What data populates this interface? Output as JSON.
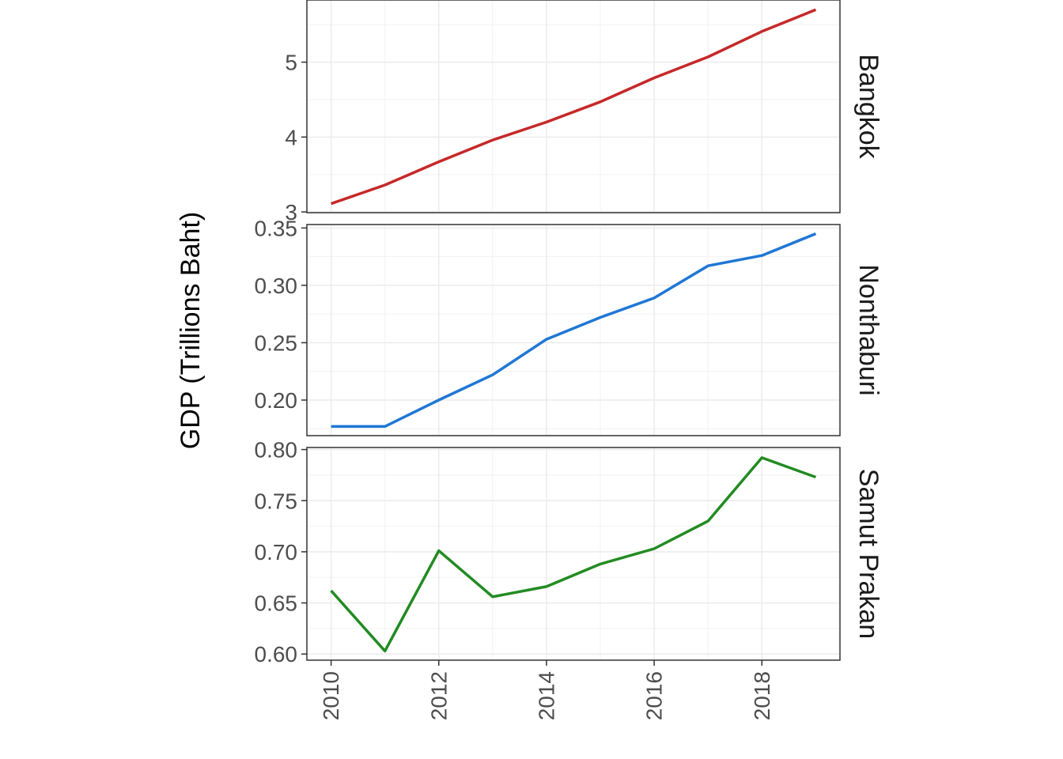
{
  "chart_data": {
    "type": "line",
    "facet_layout": "vertical, shared x axis",
    "grid": true,
    "xlabel": "",
    "ylabel": "GDP (Trillions Baht)",
    "x": [
      2010,
      2011,
      2012,
      2013,
      2014,
      2015,
      2016,
      2017,
      2018,
      2019
    ],
    "x_ticks": [
      "2010",
      "2012",
      "2014",
      "2016",
      "2018"
    ],
    "xlim": [
      2009.55,
      2019.45
    ],
    "panels": [
      {
        "name": "Bangkok",
        "color": "#c62828",
        "values": [
          3.11,
          3.36,
          3.67,
          3.96,
          4.2,
          4.47,
          4.79,
          5.07,
          5.41,
          5.7
        ],
        "ylim": [
          2.99,
          5.83
        ],
        "y_ticks": [
          "3",
          "4",
          "5"
        ]
      },
      {
        "name": "Nonthaburi",
        "color": "#1f77d4",
        "values": [
          0.177,
          0.177,
          0.2,
          0.222,
          0.253,
          0.272,
          0.289,
          0.317,
          0.326,
          0.345
        ],
        "ylim": [
          0.169,
          0.353
        ],
        "y_ticks": [
          "0.20",
          "0.25",
          "0.30",
          "0.35"
        ]
      },
      {
        "name": "Samut Prakan",
        "color": "#228b22",
        "values": [
          0.662,
          0.603,
          0.701,
          0.656,
          0.666,
          0.688,
          0.703,
          0.73,
          0.792,
          0.773
        ],
        "ylim": [
          0.594,
          0.802
        ],
        "y_ticks": [
          "0.60",
          "0.65",
          "0.70",
          "0.75",
          "0.80"
        ]
      }
    ]
  }
}
